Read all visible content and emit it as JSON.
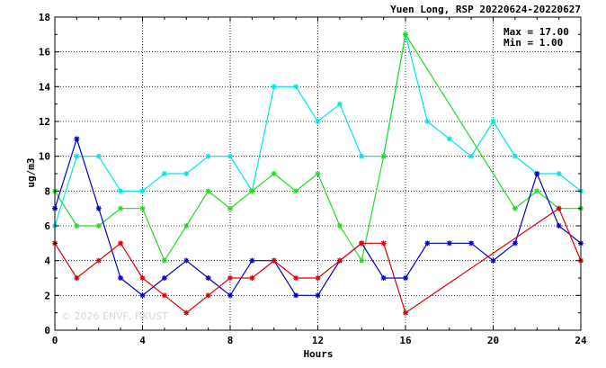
{
  "chart_data": {
    "type": "line",
    "title": "Yuen Long, RSP 20220624-20220627",
    "xlabel": "Hours",
    "ylabel": "ug/m3",
    "xlim": [
      0,
      24
    ],
    "ylim": [
      0,
      18
    ],
    "xticks": [
      0,
      4,
      8,
      12,
      16,
      20,
      24
    ],
    "yticks": [
      0,
      2,
      4,
      6,
      8,
      10,
      12,
      14,
      16,
      18
    ],
    "grid": true,
    "stats": {
      "max_label": "Max = 17.00",
      "min_label": "Min =  1.00"
    },
    "watermark": "© 2026 ENVF, HKUST",
    "series": [
      {
        "color": "#00e5e5",
        "points": [
          [
            0,
            6
          ],
          [
            1,
            10
          ],
          [
            2,
            10
          ],
          [
            3,
            8
          ],
          [
            4,
            8
          ],
          [
            5,
            9
          ],
          [
            6,
            9
          ],
          [
            7,
            10
          ],
          [
            8,
            10
          ],
          [
            9,
            8
          ],
          [
            10,
            14
          ],
          [
            11,
            14
          ],
          [
            12,
            12
          ],
          [
            13,
            13
          ],
          [
            14,
            10
          ],
          [
            15,
            10
          ],
          [
            16,
            17
          ],
          [
            17,
            12
          ],
          [
            18,
            11
          ],
          [
            19,
            10
          ],
          [
            20,
            12
          ],
          [
            21,
            10
          ],
          [
            22,
            9
          ],
          [
            23,
            9
          ],
          [
            24,
            8
          ]
        ]
      },
      {
        "color": "#22dd22",
        "points": [
          [
            0,
            8
          ],
          [
            1,
            6
          ],
          [
            2,
            6
          ],
          [
            3,
            7
          ],
          [
            4,
            7
          ],
          [
            5,
            4
          ],
          [
            6,
            6
          ],
          [
            7,
            8
          ],
          [
            8,
            7
          ],
          [
            9,
            8
          ],
          [
            10,
            9
          ],
          [
            11,
            8
          ],
          [
            12,
            9
          ],
          [
            13,
            6
          ],
          [
            14,
            4
          ],
          [
            15,
            10
          ],
          [
            16,
            17
          ],
          [
            21,
            7
          ],
          [
            22,
            8
          ],
          [
            23,
            7
          ],
          [
            24,
            7
          ]
        ]
      },
      {
        "color": "#0000cc",
        "points": [
          [
            0,
            7
          ],
          [
            1,
            11
          ],
          [
            2,
            7
          ],
          [
            3,
            3
          ],
          [
            4,
            2
          ],
          [
            5,
            3
          ],
          [
            6,
            4
          ],
          [
            7,
            3
          ],
          [
            8,
            2
          ],
          [
            9,
            4
          ],
          [
            10,
            4
          ],
          [
            11,
            2
          ],
          [
            12,
            2
          ],
          [
            13,
            4
          ],
          [
            14,
            5
          ],
          [
            15,
            3
          ],
          [
            16,
            3
          ],
          [
            17,
            5
          ],
          [
            18,
            5
          ],
          [
            19,
            5
          ],
          [
            20,
            4
          ],
          [
            21,
            5
          ],
          [
            22,
            9
          ],
          [
            23,
            6
          ],
          [
            24,
            5
          ]
        ]
      },
      {
        "color": "#dd0000",
        "points": [
          [
            0,
            5
          ],
          [
            1,
            3
          ],
          [
            2,
            4
          ],
          [
            3,
            5
          ],
          [
            4,
            3
          ],
          [
            5,
            2
          ],
          [
            6,
            1
          ],
          [
            7,
            2
          ],
          [
            8,
            3
          ],
          [
            9,
            3
          ],
          [
            10,
            4
          ],
          [
            11,
            3
          ],
          [
            12,
            3
          ],
          [
            13,
            4
          ],
          [
            14,
            5
          ],
          [
            15,
            5
          ],
          [
            16,
            1
          ],
          [
            23,
            7
          ],
          [
            24,
            4
          ]
        ]
      }
    ]
  }
}
